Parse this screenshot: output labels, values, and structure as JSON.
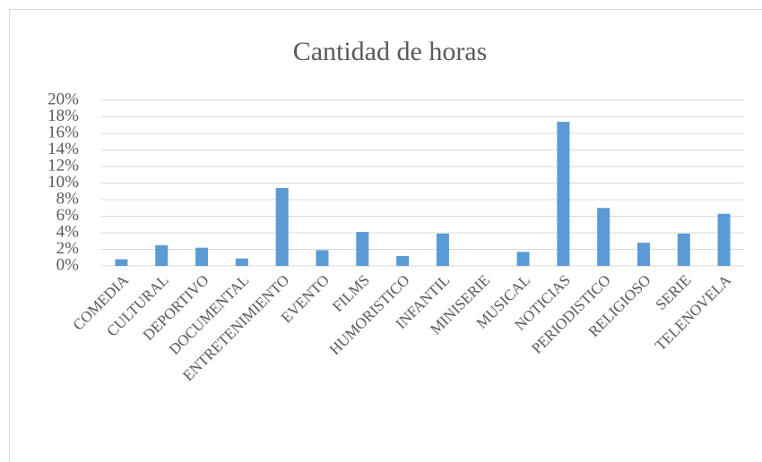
{
  "chart_data": {
    "type": "bar",
    "title": "Cantidad de horas",
    "categories": [
      "COMEDIA",
      "CULTURAL",
      "DEPORTIVO",
      "DOCUMENTAL",
      "ENTRETENIMIENTO",
      "EVENTO",
      "FILMS",
      "HUMORISTICO",
      "INFANTIL",
      "MINISERIE",
      "MUSICAL",
      "NOTICIAS",
      "PERIODISTICO",
      "RELIGIOSO",
      "SERIE",
      "TELENOVELA"
    ],
    "values": [
      0.8,
      2.5,
      2.2,
      0.9,
      9.4,
      1.9,
      4.1,
      1.2,
      3.9,
      0,
      1.7,
      17.4,
      7.0,
      2.8,
      3.9,
      6.3
    ],
    "color": "#5b9bd5",
    "ylim": [
      0,
      20
    ],
    "yticks": [
      {
        "value": 0,
        "label": "0%"
      },
      {
        "value": 2,
        "label": "2%"
      },
      {
        "value": 4,
        "label": "4%"
      },
      {
        "value": 6,
        "label": "6%"
      },
      {
        "value": 8,
        "label": "8%"
      },
      {
        "value": 10,
        "label": "10%"
      },
      {
        "value": 12,
        "label": "12%"
      },
      {
        "value": 14,
        "label": "14%"
      },
      {
        "value": 16,
        "label": "16%"
      },
      {
        "value": 18,
        "label": "18%"
      },
      {
        "value": 20,
        "label": "20%"
      }
    ],
    "grid": true
  }
}
